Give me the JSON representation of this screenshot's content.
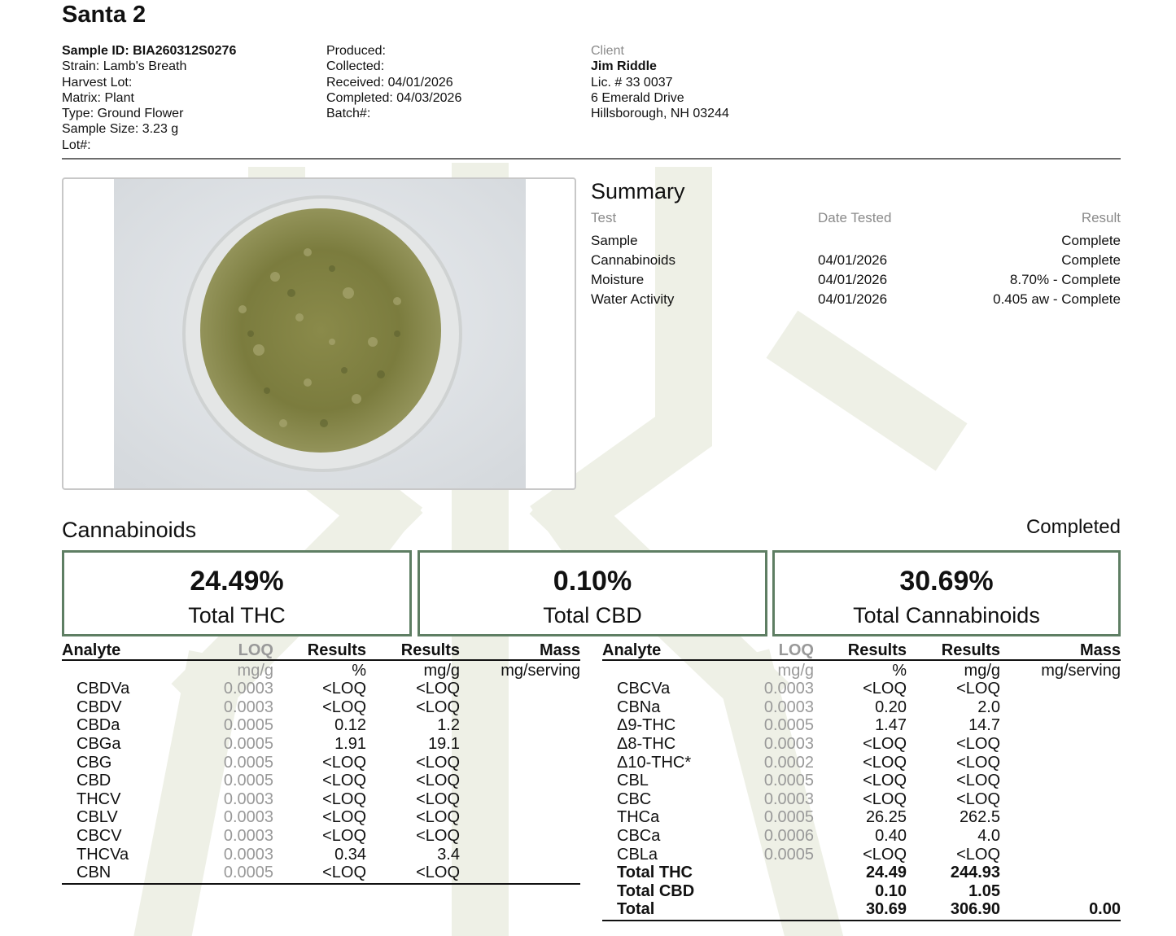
{
  "title": "Santa 2",
  "sample": {
    "id_label": "Sample ID:",
    "id_value": "BIA260312S0276",
    "strain": "Strain: Lamb's Breath",
    "harvest_lot": "Harvest Lot:",
    "matrix": "Matrix: Plant",
    "type": "Type: Ground Flower",
    "size": "Sample Size: 3.23 g",
    "lot": "Lot#:"
  },
  "dates": {
    "produced": "Produced:",
    "collected": "Collected:",
    "received": "Received: 04/01/2026",
    "completed": "Completed: 04/03/2026",
    "batch": "Batch#:"
  },
  "client": {
    "label": "Client",
    "name": "Jim Riddle",
    "license": "Lic. # 33 0037",
    "address1": "6 Emerald Drive",
    "address2": "Hillsborough, NH 03244"
  },
  "summary": {
    "title": "Summary",
    "headers": [
      "Test",
      "Date Tested",
      "Result"
    ],
    "rows": [
      {
        "test": "Sample",
        "date": "",
        "result": "Complete"
      },
      {
        "test": "Cannabinoids",
        "date": "04/01/2026",
        "result": "Complete"
      },
      {
        "test": "Moisture",
        "date": "04/01/2026",
        "result": "8.70% - Complete"
      },
      {
        "test": "Water Activity",
        "date": "04/01/2026",
        "result": "0.405 aw - Complete"
      }
    ]
  },
  "cannabinoids": {
    "title": "Cannabinoids",
    "status": "Completed",
    "totals": [
      {
        "value": "24.49%",
        "label": "Total THC"
      },
      {
        "value": "0.10%",
        "label": "Total CBD"
      },
      {
        "value": "30.69%",
        "label": "Total Cannabinoids"
      }
    ],
    "headers": [
      "Analyte",
      "LOQ",
      "Results",
      "Results",
      "Mass"
    ],
    "units": [
      "",
      "mg/g",
      "%",
      "mg/g",
      "mg/serving"
    ],
    "left_rows": [
      {
        "analyte": "CBDVa",
        "loq": "0.0003",
        "pct": "<LOQ",
        "mgg": "<LOQ"
      },
      {
        "analyte": "CBDV",
        "loq": "0.0003",
        "pct": "<LOQ",
        "mgg": "<LOQ"
      },
      {
        "analyte": "CBDa",
        "loq": "0.0005",
        "pct": "0.12",
        "mgg": "1.2"
      },
      {
        "analyte": "CBGa",
        "loq": "0.0005",
        "pct": "1.91",
        "mgg": "19.1"
      },
      {
        "analyte": "CBG",
        "loq": "0.0005",
        "pct": "<LOQ",
        "mgg": "<LOQ"
      },
      {
        "analyte": "CBD",
        "loq": "0.0005",
        "pct": "<LOQ",
        "mgg": "<LOQ"
      },
      {
        "analyte": "THCV",
        "loq": "0.0003",
        "pct": "<LOQ",
        "mgg": "<LOQ"
      },
      {
        "analyte": "CBLV",
        "loq": "0.0003",
        "pct": "<LOQ",
        "mgg": "<LOQ"
      },
      {
        "analyte": "CBCV",
        "loq": "0.0003",
        "pct": "<LOQ",
        "mgg": "<LOQ"
      },
      {
        "analyte": "THCVa",
        "loq": "0.0003",
        "pct": "0.34",
        "mgg": "3.4"
      },
      {
        "analyte": "CBN",
        "loq": "0.0005",
        "pct": "<LOQ",
        "mgg": "<LOQ"
      }
    ],
    "right_rows": [
      {
        "analyte": "CBCVa",
        "loq": "0.0003",
        "pct": "<LOQ",
        "mgg": "<LOQ"
      },
      {
        "analyte": "CBNa",
        "loq": "0.0003",
        "pct": "0.20",
        "mgg": "2.0"
      },
      {
        "analyte": "Δ9-THC",
        "loq": "0.0005",
        "pct": "1.47",
        "mgg": "14.7"
      },
      {
        "analyte": "Δ8-THC",
        "loq": "0.0003",
        "pct": "<LOQ",
        "mgg": "<LOQ"
      },
      {
        "analyte": "Δ10-THC*",
        "loq": "0.0002",
        "pct": "<LOQ",
        "mgg": "<LOQ"
      },
      {
        "analyte": "CBL",
        "loq": "0.0005",
        "pct": "<LOQ",
        "mgg": "<LOQ"
      },
      {
        "analyte": "CBC",
        "loq": "0.0003",
        "pct": "<LOQ",
        "mgg": "<LOQ"
      },
      {
        "analyte": "THCa",
        "loq": "0.0005",
        "pct": "26.25",
        "mgg": "262.5"
      },
      {
        "analyte": "CBCa",
        "loq": "0.0006",
        "pct": "0.40",
        "mgg": "4.0"
      },
      {
        "analyte": "CBLa",
        "loq": "0.0005",
        "pct": "<LOQ",
        "mgg": "<LOQ"
      }
    ],
    "total_rows": [
      {
        "analyte": "Total THC",
        "pct": "24.49",
        "mgg": "244.93",
        "mass": ""
      },
      {
        "analyte": "Total CBD",
        "pct": "0.10",
        "mgg": "1.05",
        "mass": ""
      },
      {
        "analyte": "Total",
        "pct": "30.69",
        "mgg": "306.90",
        "mass": "0.00"
      }
    ]
  },
  "colors": {
    "accent_green": "#5e7e63",
    "watermark": "#eef1e8",
    "rule": "#6d6d6d"
  }
}
